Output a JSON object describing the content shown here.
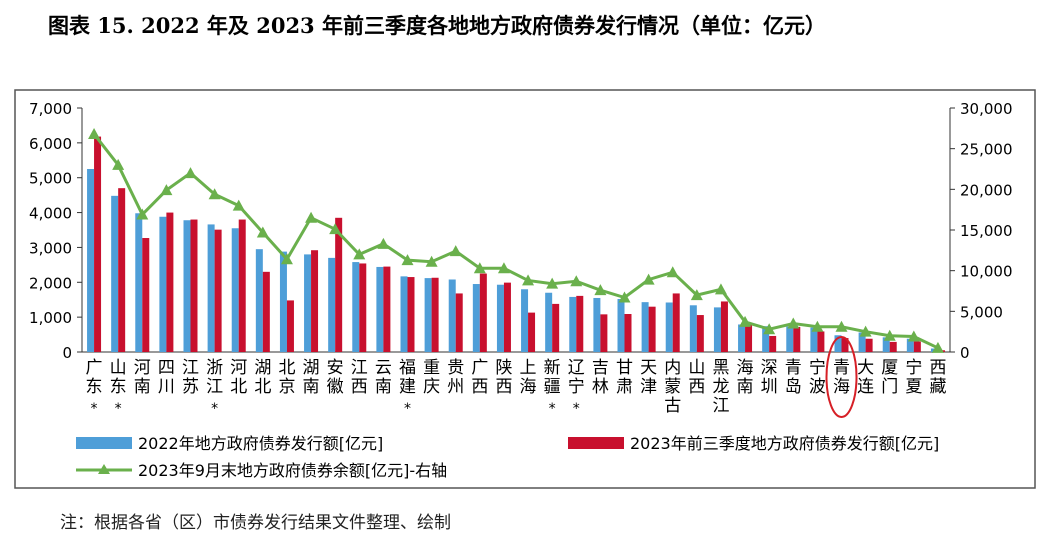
{
  "title": "图表 15. 2022 年及 2023 年前三季度各地地方政府债券发行情况（单位：亿元）",
  "note": "注：根据各省（区）市债券发行结果文件整理、绘制",
  "chart_data": {
    "type": "bar",
    "categories": [
      "广东",
      "山东",
      "河南",
      "四川",
      "江苏",
      "浙江",
      "河北",
      "湖北",
      "北京",
      "湖南",
      "安徽",
      "江西",
      "云南",
      "福建",
      "重庆",
      "贵州",
      "广西",
      "陕西",
      "上海",
      "新疆",
      "辽宁",
      "吉林",
      "甘肃",
      "天津",
      "内蒙古",
      "山西",
      "黑龙江",
      "海南",
      "深圳",
      "青岛",
      "宁波",
      "青海",
      "大连",
      "厦门",
      "宁夏",
      "西藏"
    ],
    "starred": [
      "广东",
      "山东",
      "浙江",
      "福建",
      "新疆",
      "辽宁"
    ],
    "star_mark": "*",
    "highlighted": "青海",
    "series": [
      {
        "name": "2022年地方政府债券发行额[亿元]",
        "axis": "left",
        "color": "#4e9ed8",
        "values": [
          5250,
          4480,
          3980,
          3880,
          3780,
          3660,
          3550,
          2950,
          2880,
          2800,
          2700,
          2580,
          2440,
          2170,
          2120,
          2080,
          1950,
          1930,
          1800,
          1700,
          1580,
          1550,
          1520,
          1430,
          1420,
          1340,
          1280,
          790,
          740,
          730,
          700,
          480,
          560,
          420,
          380,
          100
        ]
      },
      {
        "name": "2023年前三季度地方政府债券发行额[亿元]",
        "axis": "right_scale_left",
        "color": "#c8102e",
        "values": [
          6180,
          4700,
          3270,
          4000,
          3800,
          3510,
          3800,
          2300,
          1480,
          2920,
          3850,
          2540,
          2450,
          2150,
          2130,
          1680,
          2250,
          1990,
          1130,
          1380,
          1610,
          1080,
          1090,
          1300,
          1680,
          1060,
          1450,
          770,
          460,
          720,
          590,
          400,
          380,
          290,
          300,
          50
        ]
      },
      {
        "name": "2023年9月末地方政府债券余额[亿元]-右轴",
        "axis": "right",
        "color": "#6ab04c",
        "values": [
          26800,
          23000,
          16900,
          19900,
          22000,
          19400,
          18000,
          14700,
          11400,
          16500,
          15100,
          12000,
          13300,
          11300,
          11100,
          12400,
          10300,
          10300,
          8800,
          8400,
          8700,
          7600,
          6700,
          8900,
          9800,
          7000,
          7700,
          3700,
          2800,
          3500,
          3100,
          3100,
          2500,
          2000,
          1900,
          500
        ]
      }
    ],
    "y_left": {
      "min": 0,
      "max": 7000,
      "ticks": [
        "0",
        "1,000",
        "2,000",
        "3,000",
        "4,000",
        "5,000",
        "6,000",
        "7,000"
      ]
    },
    "y_right": {
      "min": 0,
      "max": 30000,
      "ticks": [
        "0",
        "5,000",
        "10,000",
        "15,000",
        "20,000",
        "25,000",
        "30,000"
      ]
    },
    "legend": "bottom"
  }
}
